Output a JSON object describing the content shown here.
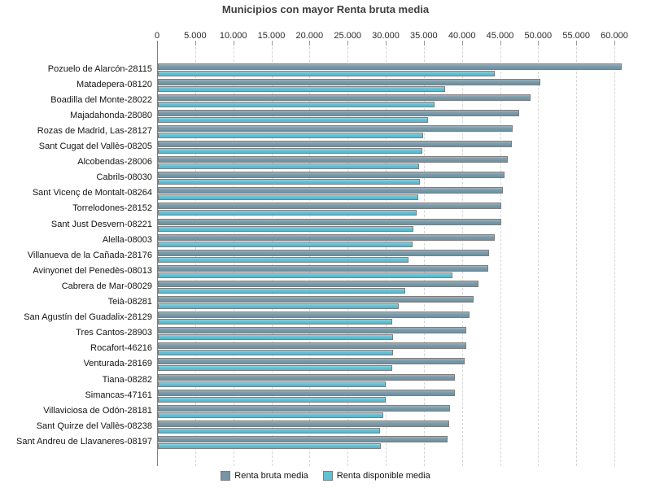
{
  "chart_data": {
    "type": "bar",
    "orientation": "horizontal",
    "title": "Municipios con mayor Renta bruta media",
    "xlabel": "",
    "ylabel": "",
    "xlim": [
      0,
      60000
    ],
    "x_tick_interval": 5000,
    "x_tick_labels": [
      "0",
      "5.000",
      "10.000",
      "15.000",
      "20.000",
      "25.000",
      "30.000",
      "35.000",
      "40.000",
      "45.000",
      "50.000",
      "55.000",
      "60.000"
    ],
    "grid": "vertical-dashed",
    "legend_position": "bottom",
    "categories": [
      "Pozuelo de Alarcón-28115",
      "Matadepera-08120",
      "Boadilla del Monte-28022",
      "Majadahonda-28080",
      "Rozas de Madrid, Las-28127",
      "Sant Cugat del Vallès-08205",
      "Alcobendas-28006",
      "Cabrils-08030",
      "Sant Vicenç de Montalt-08264",
      "Torrelodones-28152",
      "Sant Just Desvern-08221",
      "Alella-08003",
      "Villanueva de la Cañada-28176",
      "Avinyonet del Penedès-08013",
      "Cabrera de Mar-08029",
      "Teià-08281",
      "San Agustín del Guadalix-28129",
      "Tres Cantos-28903",
      "Rocafort-46216",
      "Venturada-28169",
      "Tiana-08282",
      "Simancas-47161",
      "Villaviciosa de Odón-28181",
      "Sant Quirze del Vallès-08238",
      "Sant Andreu de Llavaneres-08197"
    ],
    "series": [
      {
        "name": "Renta bruta media",
        "color": "#7496a6",
        "values": [
          60900,
          50200,
          48900,
          47400,
          46500,
          46400,
          45900,
          45500,
          45300,
          45100,
          45000,
          44200,
          43500,
          43300,
          42100,
          41400,
          40900,
          40500,
          40500,
          40300,
          39000,
          39000,
          38300,
          38200,
          38000
        ]
      },
      {
        "name": "Renta disponible media",
        "color": "#63bfd3",
        "values": [
          44200,
          37700,
          36300,
          35400,
          34800,
          34700,
          34300,
          34400,
          34200,
          34000,
          33500,
          33400,
          32900,
          38600,
          32500,
          31600,
          30800,
          30900,
          30900,
          30800,
          29900,
          29900,
          29600,
          29100,
          29300
        ]
      }
    ],
    "colors": {
      "axis_line": "#808080",
      "gridline": "#d6d6d6",
      "bar_border": "#7e7e7e",
      "text": "#141414"
    }
  }
}
